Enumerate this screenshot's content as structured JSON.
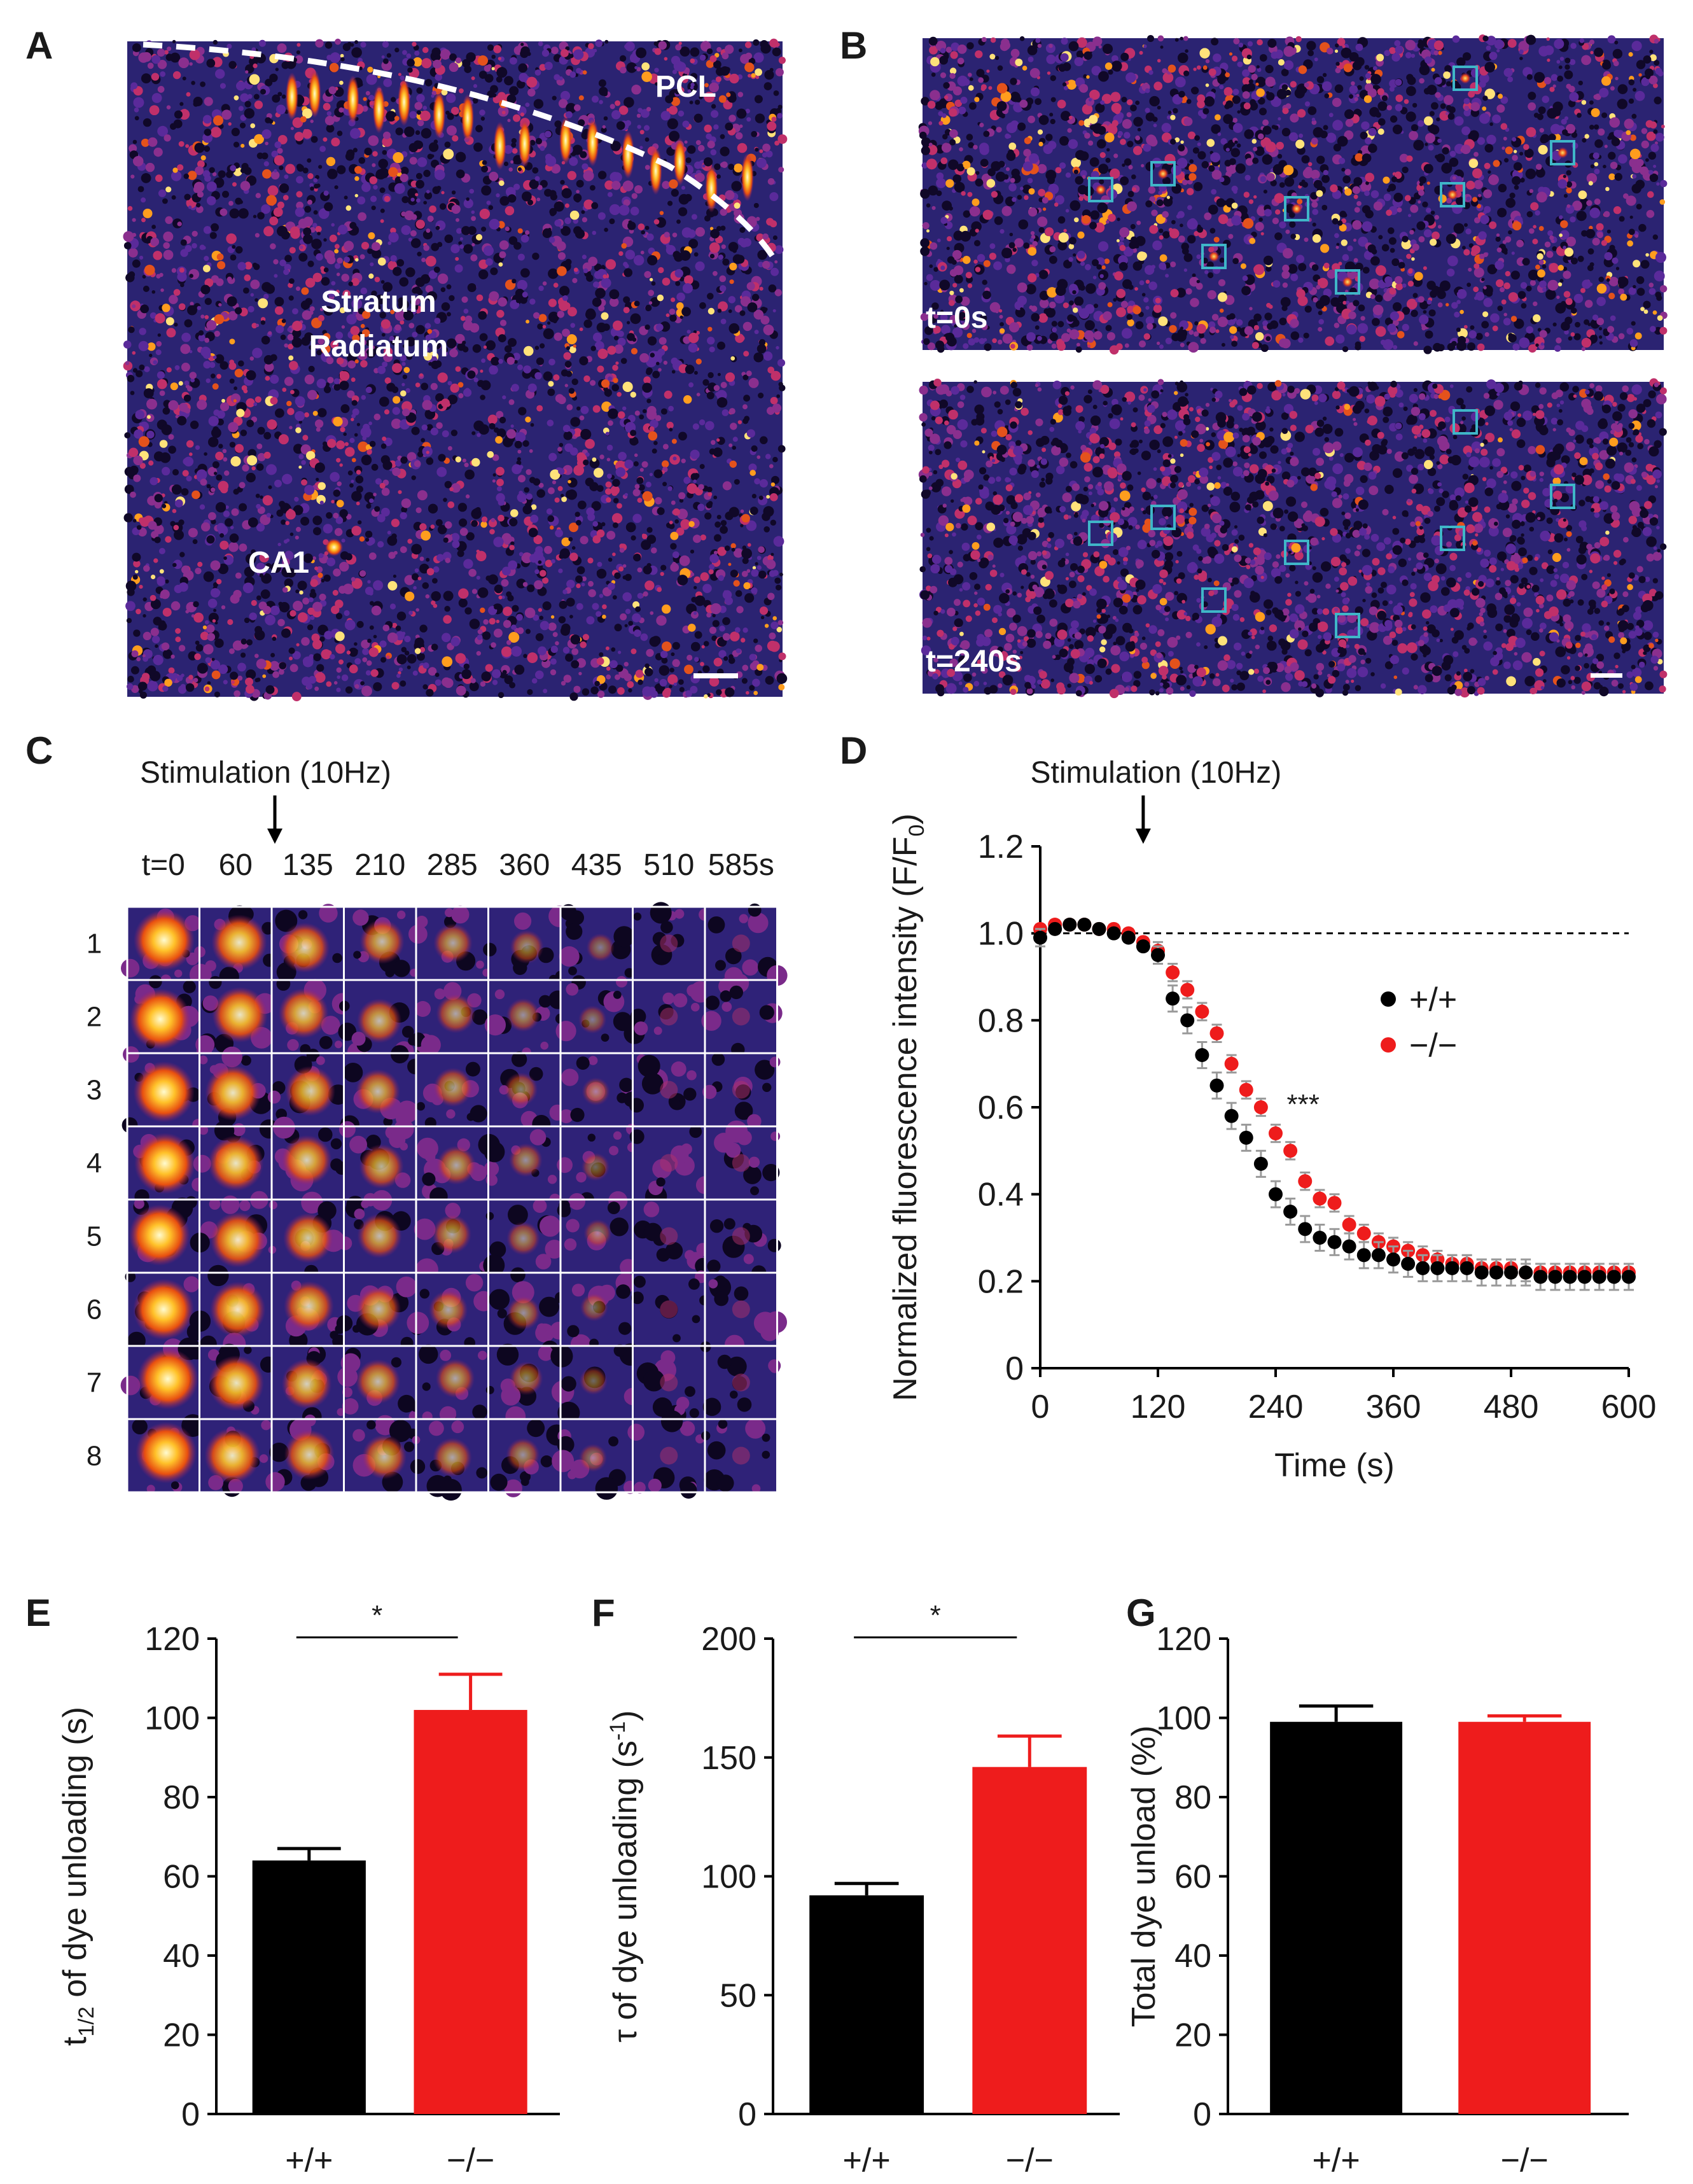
{
  "panels": {
    "a": "A",
    "b": "B",
    "c": "C",
    "d": "D",
    "e": "E",
    "f": "F",
    "g": "G"
  },
  "panel_a": {
    "pcl": "PCL",
    "stratum": "Stratum",
    "radiatum": "Radiatum",
    "ca1": "CA1"
  },
  "panel_b": {
    "t0": "t=0s",
    "t240": "t=240s"
  },
  "panel_c": {
    "stim_label": "Stimulation (10Hz)",
    "time_headers": [
      "t=0",
      "60",
      "135",
      "210",
      "285",
      "360",
      "435",
      "510",
      "585s"
    ],
    "row_labels": [
      "1",
      "2",
      "3",
      "4",
      "5",
      "6",
      "7",
      "8"
    ]
  },
  "colors": {
    "wt": "#000000",
    "ko": "#ee1c1c",
    "roi_box": "#3fb6c8",
    "error": "#9a9a9a"
  },
  "chart_data": [
    {
      "id": "D",
      "type": "scatter",
      "stim_label": "Stimulation (10Hz)",
      "xlabel": "Time (s)",
      "ylabel_main": "Normalized fluorescence intensity (F/F",
      "ylabel_sub": "0",
      "ylabel_end": ")",
      "xlim": [
        0,
        600
      ],
      "ylim": [
        0,
        1.2
      ],
      "xticks": [
        "0",
        "120",
        "240",
        "360",
        "480",
        "600"
      ],
      "yticks": [
        "0",
        "0.2",
        "0.4",
        "0.6",
        "0.8",
        "1.0",
        "1.2"
      ],
      "stim_time": 105,
      "reference_line": 1.0,
      "significance": "***",
      "series": [
        {
          "name": "+/+",
          "x": [
            0,
            15,
            30,
            45,
            60,
            75,
            90,
            105,
            120,
            135,
            150,
            165,
            180,
            195,
            210,
            225,
            240,
            255,
            270,
            285,
            300,
            315,
            330,
            345,
            360,
            375,
            390,
            405,
            420,
            435,
            450,
            465,
            480,
            495,
            510,
            525,
            540,
            555,
            570,
            585,
            600
          ],
          "y": [
            0.99,
            1.01,
            1.02,
            1.02,
            1.01,
            1.0,
            0.99,
            0.97,
            0.95,
            0.85,
            0.8,
            0.72,
            0.65,
            0.58,
            0.53,
            0.47,
            0.4,
            0.36,
            0.32,
            0.3,
            0.29,
            0.28,
            0.26,
            0.26,
            0.25,
            0.24,
            0.23,
            0.23,
            0.23,
            0.23,
            0.22,
            0.22,
            0.22,
            0.22,
            0.21,
            0.21,
            0.21,
            0.21,
            0.21,
            0.21,
            0.21
          ],
          "err": [
            0.02,
            0.01,
            0.01,
            0.01,
            0.01,
            0.01,
            0.01,
            0.01,
            0.02,
            0.03,
            0.03,
            0.03,
            0.03,
            0.03,
            0.03,
            0.03,
            0.03,
            0.03,
            0.03,
            0.03,
            0.03,
            0.03,
            0.03,
            0.03,
            0.03,
            0.03,
            0.03,
            0.03,
            0.03,
            0.03,
            0.03,
            0.03,
            0.03,
            0.03,
            0.03,
            0.03,
            0.03,
            0.03,
            0.03,
            0.03,
            0.03
          ]
        },
        {
          "name": "−/−",
          "x": [
            0,
            15,
            30,
            45,
            60,
            75,
            90,
            105,
            120,
            135,
            150,
            165,
            180,
            195,
            210,
            225,
            240,
            255,
            270,
            285,
            300,
            315,
            330,
            345,
            360,
            375,
            390,
            405,
            420,
            435,
            450,
            465,
            480,
            495,
            510,
            525,
            540,
            555,
            570,
            585,
            600
          ],
          "y": [
            1.01,
            1.02,
            1.02,
            1.02,
            1.01,
            1.01,
            1.0,
            0.98,
            0.96,
            0.91,
            0.87,
            0.82,
            0.77,
            0.7,
            0.64,
            0.6,
            0.54,
            0.5,
            0.43,
            0.39,
            0.38,
            0.33,
            0.31,
            0.29,
            0.28,
            0.27,
            0.26,
            0.25,
            0.24,
            0.24,
            0.23,
            0.23,
            0.23,
            0.22,
            0.22,
            0.22,
            0.22,
            0.22,
            0.22,
            0.22,
            0.22
          ],
          "err": [
            0.01,
            0.01,
            0.01,
            0.01,
            0.01,
            0.01,
            0.01,
            0.01,
            0.02,
            0.02,
            0.02,
            0.02,
            0.02,
            0.02,
            0.02,
            0.02,
            0.02,
            0.02,
            0.02,
            0.02,
            0.02,
            0.02,
            0.02,
            0.02,
            0.02,
            0.02,
            0.02,
            0.02,
            0.02,
            0.02,
            0.02,
            0.02,
            0.02,
            0.02,
            0.02,
            0.02,
            0.02,
            0.02,
            0.02,
            0.02,
            0.02
          ]
        }
      ]
    },
    {
      "id": "E",
      "type": "bar",
      "categories": [
        "+/+",
        "−/−"
      ],
      "values": [
        64,
        102
      ],
      "errors": [
        3,
        9
      ],
      "ylim": [
        0,
        120
      ],
      "yticks": [
        "0",
        "20",
        "40",
        "60",
        "80",
        "100",
        "120"
      ],
      "ylabel_main": "t",
      "ylabel_sub": "1/2",
      "ylabel_end": " of dye unloading (s)",
      "significance": "*"
    },
    {
      "id": "F",
      "type": "bar",
      "categories": [
        "+/+",
        "−/−"
      ],
      "values": [
        92,
        146
      ],
      "errors": [
        5,
        13
      ],
      "ylim": [
        0,
        200
      ],
      "yticks": [
        "0",
        "50",
        "100",
        "150",
        "200"
      ],
      "ylabel_main": "τ of dye unloading (s",
      "ylabel_sup": "-1",
      "ylabel_end": ")",
      "significance": "*"
    },
    {
      "id": "G",
      "type": "bar",
      "categories": [
        "+/+",
        "−/−"
      ],
      "values": [
        99,
        99
      ],
      "errors": [
        4,
        1.5
      ],
      "ylim": [
        0,
        120
      ],
      "yticks": [
        "0",
        "20",
        "40",
        "60",
        "80",
        "100",
        "120"
      ],
      "ylabel_main": "Total dye unload (%)",
      "significance": ""
    }
  ]
}
